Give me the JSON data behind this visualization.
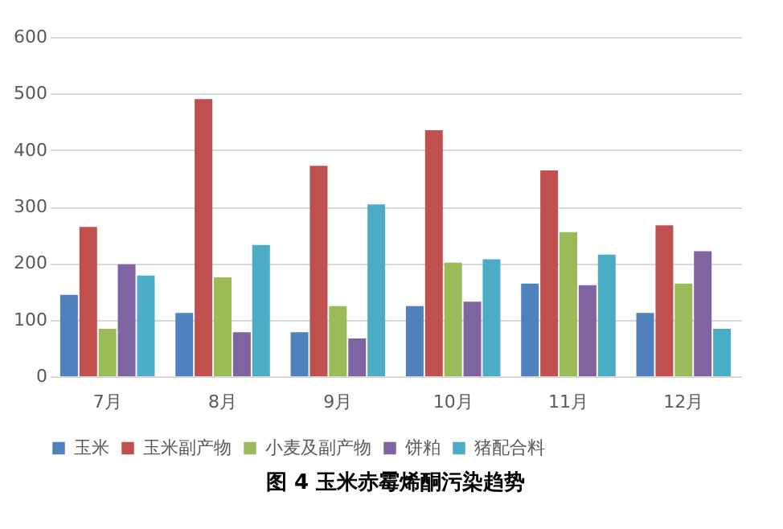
{
  "chart_data": {
    "type": "bar",
    "title": "图 4  玉米赤霉烯酮污染趋势",
    "categories": [
      "7月",
      "8月",
      "9月",
      "10月",
      "11月",
      "12月"
    ],
    "series": [
      {
        "name": "玉米",
        "color": "#4f81bd",
        "values": [
          144,
          112,
          78,
          124,
          164,
          112
        ]
      },
      {
        "name": "玉米副产物",
        "color": "#c0504d",
        "values": [
          264,
          490,
          372,
          435,
          364,
          267
        ]
      },
      {
        "name": "小麦及副产物",
        "color": "#9bbb59",
        "values": [
          84,
          175,
          124,
          201,
          255,
          164
        ]
      },
      {
        "name": "饼粕",
        "color": "#8064a2",
        "values": [
          198,
          78,
          67,
          132,
          161,
          221
        ]
      },
      {
        "name": "猪配合料",
        "color": "#4bacc6",
        "values": [
          178,
          232,
          304,
          207,
          215,
          84
        ]
      }
    ],
    "ylim": [
      0,
      600
    ],
    "yticks": [
      0,
      100,
      200,
      300,
      400,
      500,
      600
    ],
    "grid": "y",
    "legend": "bottom"
  }
}
